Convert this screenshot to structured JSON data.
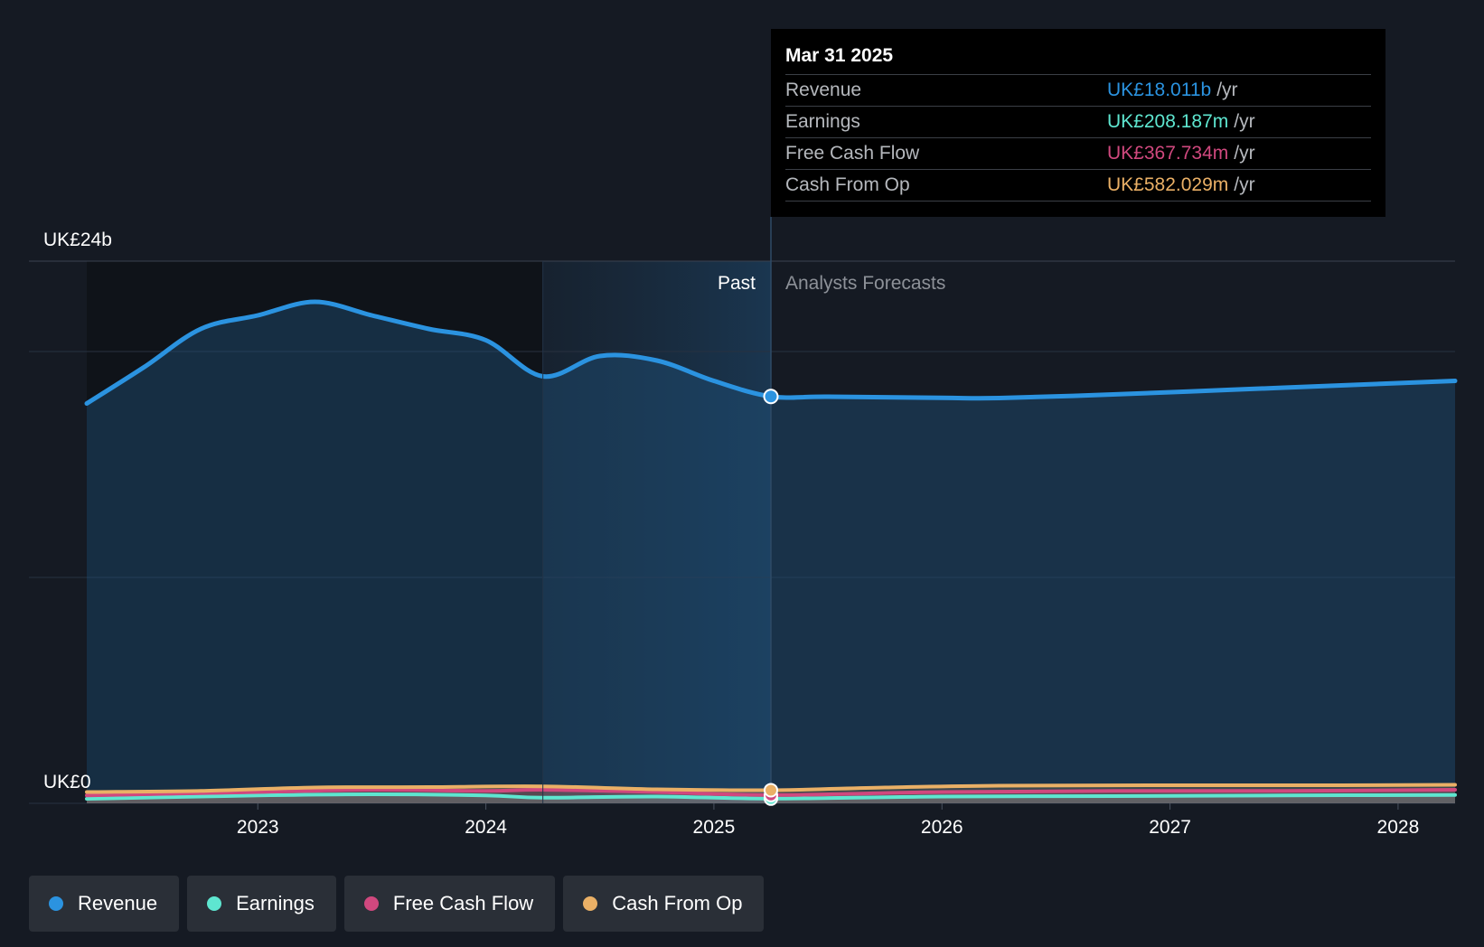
{
  "colors": {
    "background": "#151a23",
    "revenue": "#2b93e0",
    "earnings": "#5ee6d0",
    "free_cash_flow": "#d0487e",
    "cash_from_op": "#eab066"
  },
  "chart_data": {
    "type": "area",
    "currency_unit": "UK£",
    "y_axis": {
      "top_label": "UK£24b",
      "bottom_label": "UK£0",
      "ylim": [
        0,
        24
      ],
      "unit": "billion UK£"
    },
    "x_axis": {
      "ticks": [
        "2023",
        "2024",
        "2025",
        "2026",
        "2027",
        "2028"
      ],
      "xlim": [
        2022.25,
        2028.25
      ]
    },
    "grid": true,
    "zones": {
      "past_label": "Past",
      "forecast_label": "Analysts Forecasts",
      "divider_x": 2025.25,
      "shaded_past_start_x": 2024.25
    },
    "series": [
      {
        "name": "Revenue",
        "key": "revenue",
        "points": [
          [
            2022.25,
            17.7
          ],
          [
            2022.5,
            19.3
          ],
          [
            2022.75,
            21.0
          ],
          [
            2023.0,
            21.6
          ],
          [
            2023.25,
            22.2
          ],
          [
            2023.5,
            21.6
          ],
          [
            2023.75,
            21.0
          ],
          [
            2024.0,
            20.5
          ],
          [
            2024.25,
            18.9
          ],
          [
            2024.5,
            19.8
          ],
          [
            2024.75,
            19.6
          ],
          [
            2025.0,
            18.7
          ],
          [
            2025.25,
            18.011
          ],
          [
            2025.5,
            18.0
          ],
          [
            2026.0,
            17.95
          ],
          [
            2026.25,
            17.94
          ],
          [
            2026.75,
            18.1
          ],
          [
            2027.25,
            18.3
          ],
          [
            2027.75,
            18.5
          ],
          [
            2028.25,
            18.7
          ]
        ]
      },
      {
        "name": "Earnings",
        "key": "earnings",
        "points": [
          [
            2022.25,
            0.2
          ],
          [
            2023.0,
            0.35
          ],
          [
            2023.5,
            0.4
          ],
          [
            2024.0,
            0.35
          ],
          [
            2024.25,
            0.25
          ],
          [
            2024.75,
            0.3
          ],
          [
            2025.25,
            0.208
          ],
          [
            2026.0,
            0.3
          ],
          [
            2026.75,
            0.32
          ],
          [
            2027.5,
            0.35
          ],
          [
            2028.25,
            0.37
          ]
        ]
      },
      {
        "name": "Free Cash Flow",
        "key": "free_cash_flow",
        "points": [
          [
            2022.25,
            0.35
          ],
          [
            2023.0,
            0.5
          ],
          [
            2023.5,
            0.6
          ],
          [
            2024.0,
            0.55
          ],
          [
            2024.25,
            0.6
          ],
          [
            2024.75,
            0.5
          ],
          [
            2025.25,
            0.368
          ],
          [
            2026.0,
            0.5
          ],
          [
            2026.75,
            0.55
          ],
          [
            2027.5,
            0.55
          ],
          [
            2028.25,
            0.6
          ]
        ]
      },
      {
        "name": "Cash From Op",
        "key": "cash_from_op",
        "points": [
          [
            2022.25,
            0.5
          ],
          [
            2022.75,
            0.55
          ],
          [
            2023.25,
            0.7
          ],
          [
            2023.75,
            0.72
          ],
          [
            2024.25,
            0.75
          ],
          [
            2024.75,
            0.62
          ],
          [
            2025.25,
            0.582
          ],
          [
            2025.75,
            0.7
          ],
          [
            2026.25,
            0.78
          ],
          [
            2027.0,
            0.8
          ],
          [
            2027.75,
            0.8
          ],
          [
            2028.25,
            0.82
          ]
        ]
      }
    ]
  },
  "tooltip": {
    "date": "Mar 31 2025",
    "rows": [
      {
        "name": "Revenue",
        "value": "UK£18.011b",
        "unit": "/yr",
        "key": "revenue"
      },
      {
        "name": "Earnings",
        "value": "UK£208.187m",
        "unit": "/yr",
        "key": "earnings"
      },
      {
        "name": "Free Cash Flow",
        "value": "UK£367.734m",
        "unit": "/yr",
        "key": "free_cash_flow"
      },
      {
        "name": "Cash From Op",
        "value": "UK£582.029m",
        "unit": "/yr",
        "key": "cash_from_op"
      }
    ]
  },
  "legend": {
    "items": [
      {
        "label": "Revenue",
        "key": "revenue"
      },
      {
        "label": "Earnings",
        "key": "earnings"
      },
      {
        "label": "Free Cash Flow",
        "key": "free_cash_flow"
      },
      {
        "label": "Cash From Op",
        "key": "cash_from_op"
      }
    ]
  }
}
